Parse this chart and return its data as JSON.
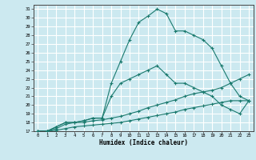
{
  "xlabel": "Humidex (Indice chaleur)",
  "xlim": [
    -0.5,
    23.5
  ],
  "ylim": [
    17,
    31.5
  ],
  "xticks": [
    0,
    1,
    2,
    3,
    4,
    5,
    6,
    7,
    8,
    9,
    10,
    11,
    12,
    13,
    14,
    15,
    16,
    17,
    18,
    19,
    20,
    21,
    22,
    23
  ],
  "yticks": [
    17,
    18,
    19,
    20,
    21,
    22,
    23,
    24,
    25,
    26,
    27,
    28,
    29,
    30,
    31
  ],
  "background_color": "#cce9f0",
  "grid_color": "#ffffff",
  "line_color": "#1a7a6e",
  "series": [
    {
      "x": [
        0,
        1,
        2,
        3,
        4,
        5,
        6,
        7,
        8,
        9,
        10,
        11,
        12,
        13,
        14,
        15,
        16,
        17,
        18,
        19,
        20,
        21,
        22,
        23
      ],
      "y": [
        17,
        17,
        17.5,
        18,
        18,
        18.2,
        18.5,
        18.5,
        22.5,
        25.0,
        27.5,
        29.5,
        30.2,
        31.0,
        30.5,
        28.5,
        28.5,
        28.0,
        27.5,
        26.5,
        24.5,
        22.5,
        21.0,
        20.5
      ]
    },
    {
      "x": [
        0,
        1,
        2,
        3,
        4,
        5,
        6,
        7,
        8,
        9,
        10,
        11,
        12,
        13,
        14,
        15,
        16,
        17,
        18,
        19,
        20,
        21,
        22,
        23
      ],
      "y": [
        17,
        17,
        17.5,
        18,
        18,
        18.2,
        18.5,
        18.5,
        21.0,
        22.5,
        23.0,
        23.5,
        24.0,
        24.5,
        23.5,
        22.5,
        22.5,
        22.0,
        21.5,
        21.0,
        20.0,
        19.5,
        19.0,
        20.5
      ]
    },
    {
      "x": [
        0,
        1,
        2,
        3,
        4,
        5,
        6,
        7,
        8,
        9,
        10,
        11,
        12,
        13,
        14,
        15,
        16,
        17,
        18,
        19,
        20,
        21,
        22,
        23
      ],
      "y": [
        17,
        17,
        17.3,
        17.8,
        18,
        18,
        18.2,
        18.3,
        18.5,
        18.7,
        19.0,
        19.3,
        19.7,
        20.0,
        20.3,
        20.6,
        21.0,
        21.3,
        21.5,
        21.7,
        22.0,
        22.5,
        23.0,
        23.5
      ]
    },
    {
      "x": [
        0,
        1,
        2,
        3,
        4,
        5,
        6,
        7,
        8,
        9,
        10,
        11,
        12,
        13,
        14,
        15,
        16,
        17,
        18,
        19,
        20,
        21,
        22,
        23
      ],
      "y": [
        17,
        17,
        17.1,
        17.3,
        17.5,
        17.6,
        17.7,
        17.8,
        17.9,
        18.0,
        18.2,
        18.4,
        18.6,
        18.8,
        19.0,
        19.2,
        19.5,
        19.7,
        19.9,
        20.1,
        20.3,
        20.5,
        20.5,
        20.5
      ]
    }
  ]
}
